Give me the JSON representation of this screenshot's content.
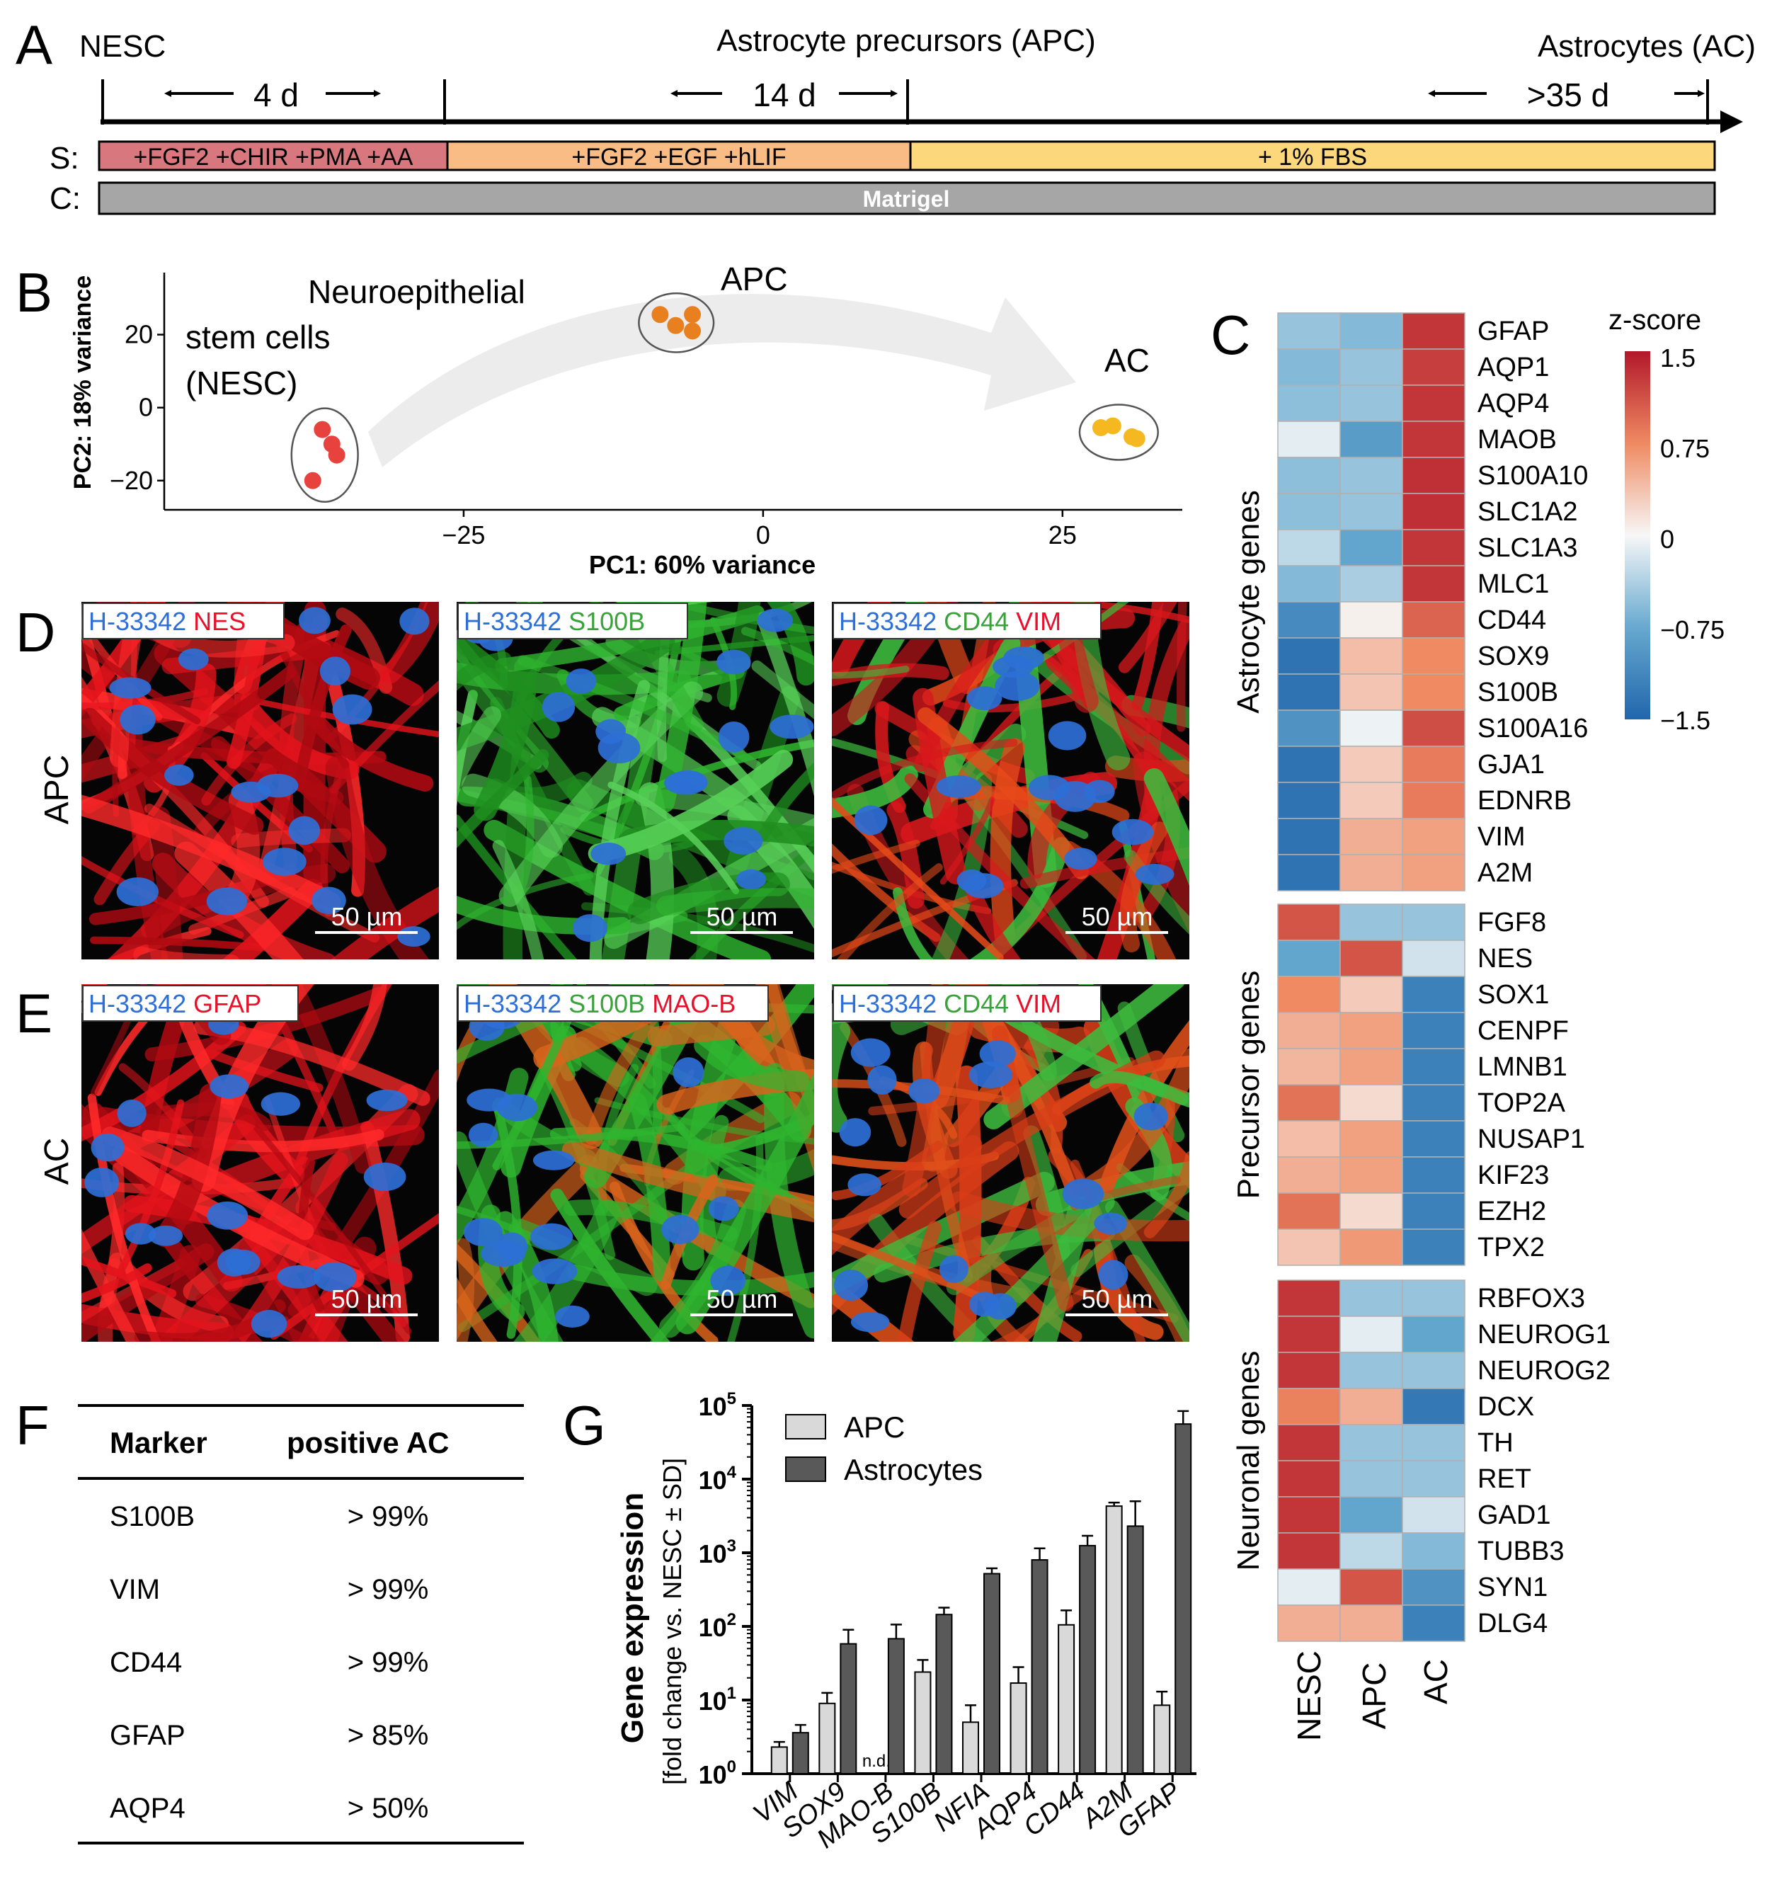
{
  "panels": {
    "a": "A",
    "b": "B",
    "c": "C",
    "d": "D",
    "e": "E",
    "f": "F",
    "g": "G"
  },
  "timeline": {
    "stages": [
      "NESC",
      "Astrocyte precursors (APC)",
      "Astrocytes (AC)"
    ],
    "durations": [
      "4 d",
      "14 d",
      ">35 d"
    ],
    "row_s_label": "S:",
    "row_c_label": "C:",
    "supplements": [
      "+FGF2 +CHIR +PMA +AA",
      "+FGF2 +EGF +hLIF",
      "+ 1% FBS"
    ],
    "coating": "Matrigel",
    "colors": {
      "s1": "#d9777e",
      "s2": "#f9bc84",
      "s3": "#fcd77c",
      "coat": "#a6a6a6"
    }
  },
  "pca": {
    "chart_data": {
      "type": "scatter",
      "xlabel": "PC1: 60% variance",
      "ylabel": "PC2: 18% variance",
      "xlim": [
        -50,
        35
      ],
      "ylim": [
        -28,
        37
      ],
      "xticks": [
        "−25",
        "0",
        "25"
      ],
      "yticks": [
        "20",
        "0",
        "−20"
      ],
      "groups": [
        {
          "name": "NESC",
          "label_lines": [
            "Neuroepithelial",
            "stem cells",
            "(NESC)"
          ],
          "color": "#e8423f",
          "points": [
            [
              -36.8,
              -6
            ],
            [
              -36.0,
              -10
            ],
            [
              -35.6,
              -13
            ],
            [
              -37.6,
              -20
            ]
          ]
        },
        {
          "name": "APC",
          "label": "APC",
          "color": "#e9801f",
          "points": [
            [
              -8.6,
              25.5
            ],
            [
              -7.3,
              22.5
            ],
            [
              -5.9,
              25.5
            ],
            [
              -5.9,
              21
            ]
          ]
        },
        {
          "name": "AC",
          "label": "AC",
          "color": "#f6b821",
          "points": [
            [
              28.2,
              -5.5
            ],
            [
              29.2,
              -5
            ],
            [
              30.8,
              -8
            ],
            [
              31.2,
              -8.5
            ]
          ]
        }
      ]
    }
  },
  "heatmap": {
    "legend_title": "z-score",
    "legend_ticks": [
      "1.5",
      "0.75",
      "0",
      "−0.75",
      "−1.5"
    ],
    "columns": [
      "NESC",
      "APC",
      "AC"
    ],
    "chart_data": {
      "type": "heatmap",
      "columns": [
        "NESC",
        "APC",
        "AC"
      ],
      "blocks": [
        {
          "title": "Astrocyte genes",
          "genes": [
            "GFAP",
            "AQP1",
            "AQP4",
            "MAOB",
            "S100A10",
            "SLC1A2",
            "SLC1A3",
            "MLC1",
            "CD44",
            "SOX9",
            "S100B",
            "S100A16",
            "GJA1",
            "EDNRB",
            "VIM",
            "A2M"
          ],
          "values": [
            [
              -0.5,
              -0.6,
              1.3
            ],
            [
              -0.6,
              -0.5,
              1.25
            ],
            [
              -0.55,
              -0.5,
              1.3
            ],
            [
              -0.1,
              -0.9,
              1.3
            ],
            [
              -0.55,
              -0.5,
              1.35
            ],
            [
              -0.55,
              -0.5,
              1.35
            ],
            [
              -0.3,
              -0.8,
              1.3
            ],
            [
              -0.6,
              -0.4,
              1.3
            ],
            [
              -1.1,
              0.05,
              1.0
            ],
            [
              -1.35,
              0.4,
              0.75
            ],
            [
              -1.35,
              0.35,
              0.75
            ],
            [
              -1.0,
              -0.05,
              1.15
            ],
            [
              -1.35,
              0.3,
              0.85
            ],
            [
              -1.35,
              0.3,
              0.85
            ],
            [
              -1.35,
              0.5,
              0.6
            ],
            [
              -1.35,
              0.5,
              0.6
            ]
          ]
        },
        {
          "title": "Precursor genes",
          "genes": [
            "FGF8",
            "NES",
            "SOX1",
            "CENPF",
            "LMNB1",
            "TOP2A",
            "NUSAP1",
            "KIF23",
            "EZH2",
            "TPX2"
          ],
          "values": [
            [
              1.1,
              -0.5,
              -0.5
            ],
            [
              -0.8,
              1.1,
              -0.2
            ],
            [
              0.75,
              0.3,
              -1.2
            ],
            [
              0.5,
              0.6,
              -1.2
            ],
            [
              0.45,
              0.6,
              -1.2
            ],
            [
              0.9,
              0.2,
              -1.2
            ],
            [
              0.4,
              0.6,
              -1.2
            ],
            [
              0.5,
              0.6,
              -1.2
            ],
            [
              0.9,
              0.2,
              -1.2
            ],
            [
              0.35,
              0.65,
              -1.2
            ]
          ]
        },
        {
          "title": "Neuronal genes",
          "genes": [
            "RBFOX3",
            "NEUROG1",
            "NEUROG2",
            "DCX",
            "TH",
            "RET",
            "GAD1",
            "TUBB3",
            "SYN1",
            "DLG4"
          ],
          "values": [
            [
              1.3,
              -0.5,
              -0.5
            ],
            [
              1.3,
              -0.1,
              -0.8
            ],
            [
              1.3,
              -0.5,
              -0.5
            ],
            [
              0.8,
              0.5,
              -1.3
            ],
            [
              1.3,
              -0.5,
              -0.5
            ],
            [
              1.3,
              -0.5,
              -0.5
            ],
            [
              1.3,
              -0.8,
              -0.2
            ],
            [
              1.3,
              -0.3,
              -0.6
            ],
            [
              -0.1,
              1.1,
              -1.0
            ],
            [
              0.5,
              0.5,
              -1.2
            ]
          ]
        }
      ]
    }
  },
  "micrographs": {
    "row_labels": [
      "APC",
      "AC"
    ],
    "scalebar": "50 µm",
    "panels": [
      {
        "stain_nuc": "H-33342",
        "stains": [
          {
            "text": "NES",
            "color": "#e8102a"
          }
        ],
        "style": "red"
      },
      {
        "stain_nuc": "H-33342",
        "stains": [
          {
            "text": "S100B",
            "color": "#3aa23a"
          }
        ],
        "style": "green"
      },
      {
        "stain_nuc": "H-33342",
        "stains": [
          {
            "text": "CD44",
            "color": "#3aa23a"
          },
          {
            "text": "VIM",
            "color": "#e8102a"
          }
        ],
        "style": "mix"
      },
      {
        "stain_nuc": "H-33342",
        "stains": [
          {
            "text": "GFAP",
            "color": "#e8102a"
          }
        ],
        "style": "red"
      },
      {
        "stain_nuc": "H-33342",
        "stains": [
          {
            "text": "S100B",
            "color": "#3aa23a"
          },
          {
            "text": "MAO-B",
            "color": "#e8102a"
          }
        ],
        "style": "green2"
      },
      {
        "stain_nuc": "H-33342",
        "stains": [
          {
            "text": "CD44",
            "color": "#3aa23a"
          },
          {
            "text": "VIM",
            "color": "#e8102a"
          }
        ],
        "style": "mix2"
      }
    ],
    "nuc_color": "#2d6fd6"
  },
  "table": {
    "headers": [
      "Marker",
      "positive AC"
    ],
    "rows": [
      [
        "S100B",
        "> 99%"
      ],
      [
        "VIM",
        "> 99%"
      ],
      [
        "CD44",
        "> 99%"
      ],
      [
        "GFAP",
        "> 85%"
      ],
      [
        "AQP4",
        "> 50%"
      ]
    ]
  },
  "bar": {
    "chart_data": {
      "type": "bar",
      "scale": "log10",
      "ylim_exp": [
        0,
        5
      ],
      "ytick_base": "10",
      "ytick_exps": [
        "0",
        "1",
        "2",
        "3",
        "4",
        "5"
      ],
      "ylabel_bold": "Gene expression",
      "ylabel_sub": "[fold change vs. NESC ± SD]",
      "categories": [
        "VIM",
        "SOX9",
        "MAO-B",
        "S100B",
        "NFIA",
        "AQP4",
        "CD44",
        "A2M",
        "GFAP"
      ],
      "series": [
        {
          "name": "APC",
          "color": "#d9d9d9",
          "values": [
            2.3,
            9,
            null,
            24,
            5,
            17,
            105,
            4300,
            8.5
          ],
          "errors": [
            0.4,
            3.5,
            null,
            11,
            3.5,
            11,
            60,
            500,
            4.5
          ]
        },
        {
          "name": "Astrocytes",
          "color": "#595959",
          "values": [
            3.6,
            58,
            68,
            145,
            520,
            800,
            1250,
            2300,
            56000
          ],
          "errors": [
            1.0,
            32,
            38,
            35,
            95,
            350,
            450,
            2700,
            28000
          ]
        }
      ],
      "nd_label": "n.d."
    }
  }
}
